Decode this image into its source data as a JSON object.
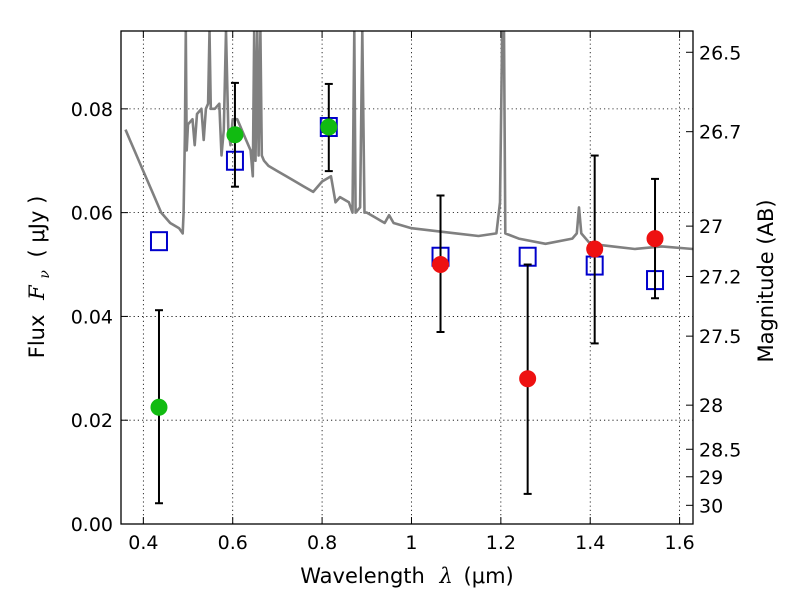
{
  "chart_data": {
    "type": "scatter",
    "xlabel_parts": {
      "word": "Wavelength",
      "symbol": "λ",
      "unit": "(μm)"
    },
    "ylabel_parts": {
      "word": "Flux",
      "symbol": "F",
      "subscript": "ν",
      "unit": "( μJy )"
    },
    "y2label": "Magnitude (AB)",
    "xlim": [
      0.35,
      1.63
    ],
    "ylim": [
      0.0,
      0.095
    ],
    "grid": true,
    "x_ticks": [
      {
        "value": 0.4,
        "label": "0.4"
      },
      {
        "value": 0.6,
        "label": "0.6"
      },
      {
        "value": 0.8,
        "label": "0.8"
      },
      {
        "value": 1.0,
        "label": "1"
      },
      {
        "value": 1.2,
        "label": "1.2"
      },
      {
        "value": 1.4,
        "label": "1.4"
      },
      {
        "value": 1.6,
        "label": "1.6"
      }
    ],
    "y_ticks": [
      {
        "value": 0.0,
        "label": "0.00"
      },
      {
        "value": 0.02,
        "label": "0.02"
      },
      {
        "value": 0.04,
        "label": "0.04"
      },
      {
        "value": 0.06,
        "label": "0.06"
      },
      {
        "value": 0.08,
        "label": "0.08"
      }
    ],
    "mag_ticks": [
      {
        "label": "26.5",
        "flux": 0.0909
      },
      {
        "label": "26.7",
        "flux": 0.0756
      },
      {
        "label": "27",
        "flux": 0.0574
      },
      {
        "label": "27.2",
        "flux": 0.0477
      },
      {
        "label": "27.5",
        "flux": 0.0362
      },
      {
        "label": "28",
        "flux": 0.0229
      },
      {
        "label": "28.5",
        "flux": 0.0144
      },
      {
        "label": "29",
        "flux": 0.0091
      },
      {
        "label": "30",
        "flux": 0.0036
      }
    ],
    "series": [
      {
        "name": "template-spectrum",
        "kind": "line",
        "color": "#808080",
        "points": [
          [
            0.36,
            0.076
          ],
          [
            0.37,
            0.074
          ],
          [
            0.38,
            0.072
          ],
          [
            0.4,
            0.068
          ],
          [
            0.42,
            0.064
          ],
          [
            0.44,
            0.06
          ],
          [
            0.46,
            0.058
          ],
          [
            0.48,
            0.057
          ],
          [
            0.488,
            0.056
          ],
          [
            0.49,
            0.06
          ],
          [
            0.493,
            0.075
          ],
          [
            0.495,
            0.095
          ],
          [
            0.497,
            0.072
          ],
          [
            0.5,
            0.077
          ],
          [
            0.51,
            0.078
          ],
          [
            0.515,
            0.073
          ],
          [
            0.52,
            0.079
          ],
          [
            0.53,
            0.08
          ],
          [
            0.535,
            0.074
          ],
          [
            0.54,
            0.08
          ],
          [
            0.545,
            0.081
          ],
          [
            0.548,
            0.095
          ],
          [
            0.551,
            0.08
          ],
          [
            0.56,
            0.08
          ],
          [
            0.57,
            0.081
          ],
          [
            0.575,
            0.071
          ],
          [
            0.58,
            0.076
          ],
          [
            0.585,
            0.095
          ],
          [
            0.59,
            0.076
          ],
          [
            0.595,
            0.073
          ],
          [
            0.6,
            0.078
          ],
          [
            0.61,
            0.078
          ],
          [
            0.62,
            0.076
          ],
          [
            0.63,
            0.074
          ],
          [
            0.64,
            0.072
          ],
          [
            0.645,
            0.067
          ],
          [
            0.648,
            0.095
          ],
          [
            0.651,
            0.07
          ],
          [
            0.655,
            0.095
          ],
          [
            0.658,
            0.071
          ],
          [
            0.662,
            0.095
          ],
          [
            0.665,
            0.071
          ],
          [
            0.67,
            0.07
          ],
          [
            0.68,
            0.069
          ],
          [
            0.7,
            0.068
          ],
          [
            0.72,
            0.067
          ],
          [
            0.74,
            0.066
          ],
          [
            0.76,
            0.065
          ],
          [
            0.78,
            0.064
          ],
          [
            0.8,
            0.066
          ],
          [
            0.82,
            0.067
          ],
          [
            0.83,
            0.062
          ],
          [
            0.84,
            0.063
          ],
          [
            0.86,
            0.062
          ],
          [
            0.868,
            0.06
          ],
          [
            0.872,
            0.095
          ],
          [
            0.875,
            0.06
          ],
          [
            0.885,
            0.061
          ],
          [
            0.89,
            0.095
          ],
          [
            0.895,
            0.06
          ],
          [
            0.9,
            0.06
          ],
          [
            0.92,
            0.059
          ],
          [
            0.94,
            0.058
          ],
          [
            0.95,
            0.0595
          ],
          [
            0.96,
            0.058
          ],
          [
            1.0,
            0.057
          ],
          [
            1.05,
            0.0565
          ],
          [
            1.1,
            0.056
          ],
          [
            1.15,
            0.0555
          ],
          [
            1.19,
            0.056
          ],
          [
            1.198,
            0.062
          ],
          [
            1.203,
            0.095
          ],
          [
            1.207,
            0.095
          ],
          [
            1.21,
            0.056
          ],
          [
            1.24,
            0.055
          ],
          [
            1.3,
            0.054
          ],
          [
            1.36,
            0.055
          ],
          [
            1.37,
            0.056
          ],
          [
            1.375,
            0.061
          ],
          [
            1.38,
            0.056
          ],
          [
            1.4,
            0.054
          ],
          [
            1.45,
            0.0535
          ],
          [
            1.5,
            0.053
          ],
          [
            1.56,
            0.0535
          ],
          [
            1.63,
            0.053
          ]
        ]
      },
      {
        "name": "model-photometry",
        "kind": "open-square",
        "color": "#0000cc",
        "points": [
          [
            0.435,
            0.0545
          ],
          [
            0.605,
            0.07
          ],
          [
            0.815,
            0.0765
          ],
          [
            1.065,
            0.0515
          ],
          [
            1.26,
            0.0515
          ],
          [
            1.41,
            0.0498
          ],
          [
            1.545,
            0.047
          ]
        ]
      },
      {
        "name": "observed-green",
        "kind": "filled-circle",
        "color": "#11bb11",
        "points": [
          {
            "x": 0.435,
            "y": 0.0225,
            "lo": 0.004,
            "hi": 0.0412
          },
          {
            "x": 0.605,
            "y": 0.075,
            "lo": 0.065,
            "hi": 0.085
          },
          {
            "x": 0.815,
            "y": 0.0765,
            "lo": 0.068,
            "hi": 0.0848
          }
        ]
      },
      {
        "name": "observed-red",
        "kind": "filled-circle",
        "color": "#ee1111",
        "points": [
          {
            "x": 1.065,
            "y": 0.05,
            "lo": 0.037,
            "hi": 0.0633
          },
          {
            "x": 1.26,
            "y": 0.028,
            "lo": 0.0058,
            "hi": 0.05
          },
          {
            "x": 1.41,
            "y": 0.053,
            "lo": 0.0348,
            "hi": 0.071
          },
          {
            "x": 1.545,
            "y": 0.055,
            "lo": 0.0435,
            "hi": 0.0665
          }
        ]
      }
    ]
  }
}
